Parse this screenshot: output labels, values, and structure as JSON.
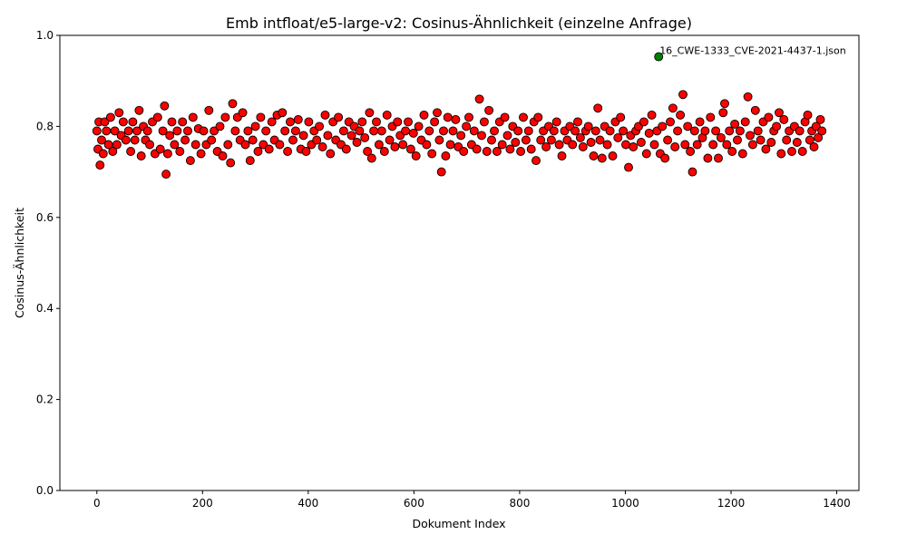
{
  "chart_data": {
    "type": "scatter",
    "title": "Emb intfloat/e5-large-v2: Cosinus-Ähnlichkeit (einzelne Anfrage)",
    "xlabel": "Dokument Index",
    "ylabel": "Cosinus-Ähnlichkeit",
    "xlim": [
      -70,
      1442
    ],
    "ylim": [
      0.0,
      1.0
    ],
    "xticks": [
      0,
      200,
      400,
      600,
      800,
      1000,
      1200,
      1400
    ],
    "xtick_labels": [
      "0",
      "200",
      "400",
      "600",
      "800",
      "1000",
      "1200",
      "1400"
    ],
    "yticks": [
      0.0,
      0.2,
      0.4,
      0.6,
      0.8,
      1.0
    ],
    "ytick_labels": [
      "0.0",
      "0.2",
      "0.4",
      "0.6",
      "0.8",
      "1.0"
    ],
    "grid": false,
    "colors": {
      "points": "#ff0000",
      "highlight": "#008000",
      "edge": "#000000"
    },
    "series": [
      {
        "name": "",
        "points": [
          [
            0,
            0.79
          ],
          [
            2,
            0.75
          ],
          [
            4,
            0.81
          ],
          [
            6,
            0.715
          ],
          [
            9,
            0.77
          ],
          [
            12,
            0.74
          ],
          [
            15,
            0.81
          ],
          [
            18,
            0.79
          ],
          [
            22,
            0.76
          ],
          [
            26,
            0.82
          ],
          [
            30,
            0.745
          ],
          [
            34,
            0.79
          ],
          [
            38,
            0.76
          ],
          [
            42,
            0.83
          ],
          [
            46,
            0.78
          ],
          [
            50,
            0.81
          ],
          [
            55,
            0.77
          ],
          [
            60,
            0.79
          ],
          [
            64,
            0.745
          ],
          [
            68,
            0.81
          ],
          [
            72,
            0.77
          ],
          [
            76,
            0.79
          ],
          [
            80,
            0.835
          ],
          [
            84,
            0.735
          ],
          [
            88,
            0.8
          ],
          [
            92,
            0.77
          ],
          [
            96,
            0.79
          ],
          [
            100,
            0.76
          ],
          [
            105,
            0.81
          ],
          [
            110,
            0.74
          ],
          [
            115,
            0.82
          ],
          [
            120,
            0.75
          ],
          [
            125,
            0.79
          ],
          [
            128,
            0.845
          ],
          [
            131,
            0.695
          ],
          [
            134,
            0.74
          ],
          [
            138,
            0.78
          ],
          [
            142,
            0.81
          ],
          [
            147,
            0.76
          ],
          [
            152,
            0.79
          ],
          [
            157,
            0.745
          ],
          [
            162,
            0.81
          ],
          [
            167,
            0.77
          ],
          [
            172,
            0.79
          ],
          [
            177,
            0.725
          ],
          [
            182,
            0.82
          ],
          [
            187,
            0.76
          ],
          [
            192,
            0.795
          ],
          [
            197,
            0.74
          ],
          [
            202,
            0.79
          ],
          [
            207,
            0.76
          ],
          [
            212,
            0.835
          ],
          [
            217,
            0.77
          ],
          [
            222,
            0.79
          ],
          [
            228,
            0.745
          ],
          [
            233,
            0.8
          ],
          [
            238,
            0.735
          ],
          [
            243,
            0.82
          ],
          [
            248,
            0.76
          ],
          [
            253,
            0.72
          ],
          [
            257,
            0.85
          ],
          [
            262,
            0.79
          ],
          [
            266,
            0.82
          ],
          [
            271,
            0.77
          ],
          [
            276,
            0.83
          ],
          [
            281,
            0.76
          ],
          [
            286,
            0.79
          ],
          [
            290,
            0.725
          ],
          [
            295,
            0.77
          ],
          [
            300,
            0.8
          ],
          [
            305,
            0.745
          ],
          [
            310,
            0.82
          ],
          [
            315,
            0.76
          ],
          [
            320,
            0.79
          ],
          [
            326,
            0.75
          ],
          [
            331,
            0.81
          ],
          [
            336,
            0.77
          ],
          [
            341,
            0.825
          ],
          [
            346,
            0.76
          ],
          [
            351,
            0.83
          ],
          [
            356,
            0.79
          ],
          [
            361,
            0.745
          ],
          [
            366,
            0.81
          ],
          [
            371,
            0.77
          ],
          [
            376,
            0.79
          ],
          [
            381,
            0.815
          ],
          [
            386,
            0.75
          ],
          [
            391,
            0.78
          ],
          [
            396,
            0.745
          ],
          [
            401,
            0.81
          ],
          [
            406,
            0.76
          ],
          [
            411,
            0.79
          ],
          [
            416,
            0.77
          ],
          [
            421,
            0.8
          ],
          [
            427,
            0.755
          ],
          [
            432,
            0.825
          ],
          [
            437,
            0.78
          ],
          [
            442,
            0.74
          ],
          [
            447,
            0.81
          ],
          [
            452,
            0.77
          ],
          [
            457,
            0.82
          ],
          [
            462,
            0.76
          ],
          [
            467,
            0.79
          ],
          [
            472,
            0.75
          ],
          [
            477,
            0.81
          ],
          [
            482,
            0.78
          ],
          [
            487,
            0.8
          ],
          [
            492,
            0.765
          ],
          [
            497,
            0.79
          ],
          [
            502,
            0.81
          ],
          [
            507,
            0.775
          ],
          [
            512,
            0.745
          ],
          [
            516,
            0.83
          ],
          [
            520,
            0.73
          ],
          [
            524,
            0.79
          ],
          [
            529,
            0.81
          ],
          [
            534,
            0.76
          ],
          [
            539,
            0.79
          ],
          [
            544,
            0.745
          ],
          [
            549,
            0.825
          ],
          [
            554,
            0.77
          ],
          [
            559,
            0.8
          ],
          [
            564,
            0.755
          ],
          [
            569,
            0.81
          ],
          [
            574,
            0.78
          ],
          [
            579,
            0.76
          ],
          [
            584,
            0.79
          ],
          [
            589,
            0.81
          ],
          [
            594,
            0.75
          ],
          [
            599,
            0.785
          ],
          [
            604,
            0.735
          ],
          [
            609,
            0.8
          ],
          [
            614,
            0.77
          ],
          [
            619,
            0.825
          ],
          [
            624,
            0.76
          ],
          [
            629,
            0.79
          ],
          [
            634,
            0.74
          ],
          [
            639,
            0.81
          ],
          [
            644,
            0.83
          ],
          [
            648,
            0.77
          ],
          [
            652,
            0.7
          ],
          [
            656,
            0.79
          ],
          [
            660,
            0.735
          ],
          [
            664,
            0.82
          ],
          [
            669,
            0.76
          ],
          [
            674,
            0.79
          ],
          [
            679,
            0.815
          ],
          [
            684,
            0.755
          ],
          [
            689,
            0.78
          ],
          [
            694,
            0.745
          ],
          [
            699,
            0.8
          ],
          [
            704,
            0.82
          ],
          [
            709,
            0.76
          ],
          [
            714,
            0.79
          ],
          [
            719,
            0.75
          ],
          [
            724,
            0.86
          ],
          [
            728,
            0.78
          ],
          [
            733,
            0.81
          ],
          [
            738,
            0.745
          ],
          [
            742,
            0.835
          ],
          [
            747,
            0.77
          ],
          [
            752,
            0.79
          ],
          [
            757,
            0.745
          ],
          [
            762,
            0.81
          ],
          [
            767,
            0.76
          ],
          [
            772,
            0.82
          ],
          [
            777,
            0.78
          ],
          [
            782,
            0.75
          ],
          [
            787,
            0.8
          ],
          [
            792,
            0.765
          ],
          [
            797,
            0.79
          ],
          [
            802,
            0.745
          ],
          [
            807,
            0.82
          ],
          [
            812,
            0.77
          ],
          [
            817,
            0.79
          ],
          [
            822,
            0.75
          ],
          [
            827,
            0.81
          ],
          [
            831,
            0.725
          ],
          [
            835,
            0.82
          ],
          [
            840,
            0.77
          ],
          [
            845,
            0.79
          ],
          [
            850,
            0.755
          ],
          [
            855,
            0.8
          ],
          [
            860,
            0.77
          ],
          [
            865,
            0.79
          ],
          [
            870,
            0.81
          ],
          [
            875,
            0.76
          ],
          [
            880,
            0.735
          ],
          [
            885,
            0.79
          ],
          [
            890,
            0.77
          ],
          [
            895,
            0.8
          ],
          [
            900,
            0.76
          ],
          [
            905,
            0.79
          ],
          [
            910,
            0.81
          ],
          [
            915,
            0.775
          ],
          [
            920,
            0.755
          ],
          [
            925,
            0.79
          ],
          [
            930,
            0.8
          ],
          [
            935,
            0.765
          ],
          [
            940,
            0.735
          ],
          [
            944,
            0.79
          ],
          [
            948,
            0.84
          ],
          [
            952,
            0.77
          ],
          [
            956,
            0.73
          ],
          [
            961,
            0.8
          ],
          [
            966,
            0.76
          ],
          [
            971,
            0.79
          ],
          [
            976,
            0.735
          ],
          [
            981,
            0.81
          ],
          [
            986,
            0.775
          ],
          [
            991,
            0.82
          ],
          [
            996,
            0.79
          ],
          [
            1001,
            0.76
          ],
          [
            1006,
            0.71
          ],
          [
            1010,
            0.78
          ],
          [
            1015,
            0.755
          ],
          [
            1020,
            0.79
          ],
          [
            1025,
            0.8
          ],
          [
            1030,
            0.765
          ],
          [
            1035,
            0.81
          ],
          [
            1040,
            0.74
          ],
          [
            1045,
            0.785
          ],
          [
            1050,
            0.825
          ],
          [
            1055,
            0.76
          ],
          [
            1060,
            0.79
          ],
          [
            1066,
            0.74
          ],
          [
            1070,
            0.8
          ],
          [
            1075,
            0.73
          ],
          [
            1080,
            0.77
          ],
          [
            1085,
            0.81
          ],
          [
            1090,
            0.84
          ],
          [
            1094,
            0.755
          ],
          [
            1099,
            0.79
          ],
          [
            1104,
            0.825
          ],
          [
            1109,
            0.87
          ],
          [
            1113,
            0.76
          ],
          [
            1118,
            0.8
          ],
          [
            1123,
            0.745
          ],
          [
            1127,
            0.7
          ],
          [
            1131,
            0.79
          ],
          [
            1136,
            0.76
          ],
          [
            1141,
            0.81
          ],
          [
            1146,
            0.775
          ],
          [
            1151,
            0.79
          ],
          [
            1156,
            0.73
          ],
          [
            1161,
            0.82
          ],
          [
            1166,
            0.76
          ],
          [
            1171,
            0.79
          ],
          [
            1176,
            0.73
          ],
          [
            1181,
            0.775
          ],
          [
            1185,
            0.83
          ],
          [
            1188,
            0.85
          ],
          [
            1192,
            0.76
          ],
          [
            1197,
            0.79
          ],
          [
            1202,
            0.745
          ],
          [
            1207,
            0.805
          ],
          [
            1212,
            0.77
          ],
          [
            1217,
            0.79
          ],
          [
            1222,
            0.74
          ],
          [
            1227,
            0.81
          ],
          [
            1232,
            0.865
          ],
          [
            1236,
            0.78
          ],
          [
            1241,
            0.76
          ],
          [
            1246,
            0.835
          ],
          [
            1251,
            0.79
          ],
          [
            1256,
            0.77
          ],
          [
            1261,
            0.81
          ],
          [
            1266,
            0.75
          ],
          [
            1271,
            0.82
          ],
          [
            1276,
            0.765
          ],
          [
            1281,
            0.79
          ],
          [
            1286,
            0.8
          ],
          [
            1291,
            0.83
          ],
          [
            1295,
            0.74
          ],
          [
            1300,
            0.815
          ],
          [
            1305,
            0.77
          ],
          [
            1310,
            0.79
          ],
          [
            1315,
            0.745
          ],
          [
            1320,
            0.8
          ],
          [
            1325,
            0.765
          ],
          [
            1330,
            0.79
          ],
          [
            1335,
            0.745
          ],
          [
            1340,
            0.81
          ],
          [
            1345,
            0.825
          ],
          [
            1349,
            0.77
          ],
          [
            1353,
            0.79
          ],
          [
            1357,
            0.755
          ],
          [
            1361,
            0.8
          ],
          [
            1365,
            0.775
          ],
          [
            1369,
            0.815
          ],
          [
            1372,
            0.79
          ]
        ]
      }
    ],
    "highlight": {
      "label": "16_CWE-1333_CVE-2021-4437-1.json",
      "x": 1063,
      "y": 0.953
    }
  }
}
